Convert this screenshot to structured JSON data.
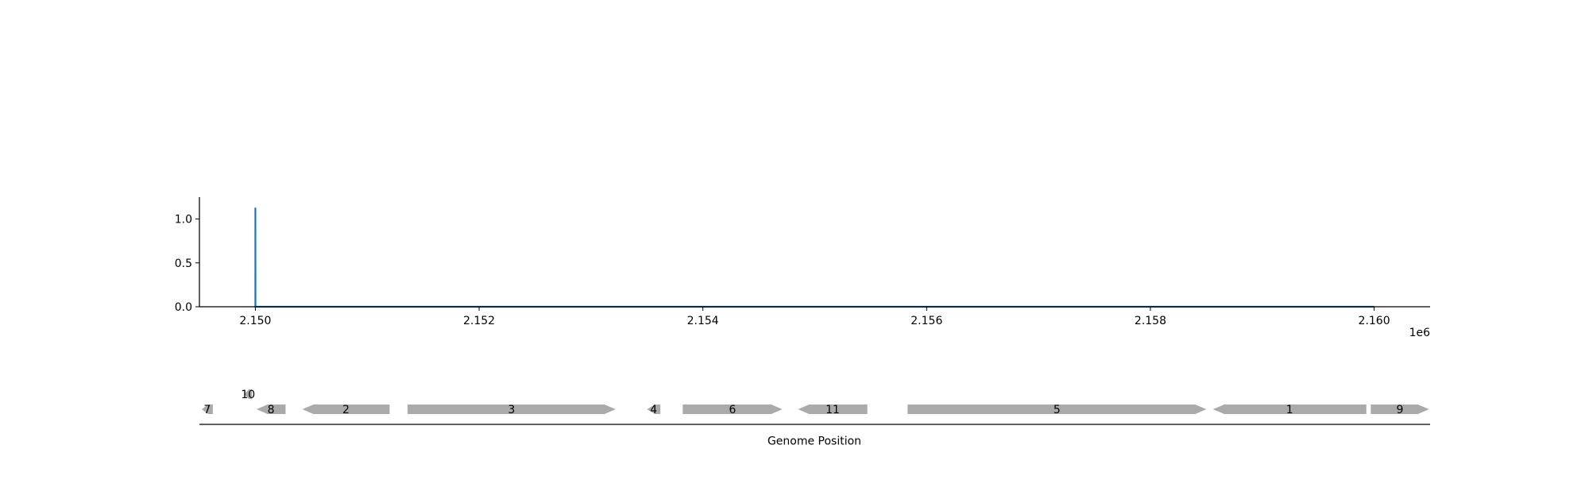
{
  "chart_data": [
    {
      "type": "line",
      "title": "",
      "xlabel": "",
      "ylabel": "",
      "x_offset_label": "1e6",
      "xlim": [
        2149500,
        2160500
      ],
      "ylim": [
        0,
        1.25
      ],
      "xticks": [
        2150000,
        2152000,
        2154000,
        2156000,
        2158000,
        2160000
      ],
      "xtick_labels": [
        "2.150",
        "2.152",
        "2.154",
        "2.156",
        "2.158",
        "2.160"
      ],
      "yticks": [
        0.0,
        0.5,
        1.0
      ],
      "ytick_labels": [
        "0.0",
        "0.5",
        "1.0"
      ],
      "grid": false,
      "series": [
        {
          "color": "#1f77b4",
          "x": [
            2150000,
            2150000,
            2150001,
            2160000
          ],
          "y": [
            0,
            1.13,
            0,
            0
          ]
        }
      ]
    },
    {
      "type": "gene-track",
      "xlabel": "Genome Position",
      "xlim": [
        2149500,
        2160500
      ],
      "feature_color": "#aaaaaa",
      "genes": [
        {
          "label": "7",
          "start": 2149520,
          "end": 2149620,
          "strand": -1,
          "row": 0
        },
        {
          "label": "10",
          "start": 2149900,
          "end": 2149970,
          "strand": -1,
          "row": 1
        },
        {
          "label": "8",
          "start": 2150010,
          "end": 2150270,
          "strand": -1,
          "row": 0
        },
        {
          "label": "2",
          "start": 2150420,
          "end": 2151200,
          "strand": -1,
          "row": 0
        },
        {
          "label": "3",
          "start": 2151360,
          "end": 2153220,
          "strand": 1,
          "row": 0
        },
        {
          "label": "4",
          "start": 2153500,
          "end": 2153620,
          "strand": -1,
          "row": 0
        },
        {
          "label": "6",
          "start": 2153820,
          "end": 2154710,
          "strand": 1,
          "row": 0
        },
        {
          "label": "11",
          "start": 2154850,
          "end": 2155470,
          "strand": -1,
          "row": 0
        },
        {
          "label": "5",
          "start": 2155830,
          "end": 2158500,
          "strand": 1,
          "row": 0
        },
        {
          "label": "1",
          "start": 2158560,
          "end": 2159930,
          "strand": -1,
          "row": 0
        },
        {
          "label": "9",
          "start": 2159970,
          "end": 2160490,
          "strand": 1,
          "row": 0
        }
      ]
    }
  ]
}
